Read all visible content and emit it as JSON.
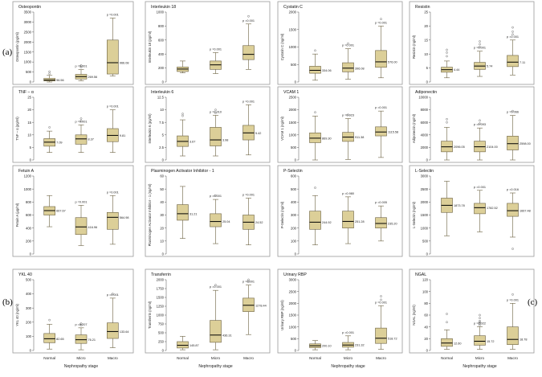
{
  "figure": {
    "row_labels": [
      "(a)",
      "(b)",
      "(c)"
    ],
    "categories": [
      "Normal",
      "Micro",
      "Macro"
    ],
    "xlabel": "Nephropathy stage",
    "colors": {
      "box_fill": "#dccf98",
      "box_stroke": "#6b6040",
      "frame": "#9a9a9a",
      "median": "#000000",
      "outlier": "#707070"
    }
  },
  "chart_data": [
    {
      "type": "box",
      "title": "Osteopontin",
      "ylabel": "Osteopontin (pg/ml)",
      "ylim": [
        0,
        3500
      ],
      "yticks": [
        0,
        500,
        1000,
        1500,
        2000,
        2500,
        3000,
        3500
      ],
      "categories": [
        "Normal",
        "Micro",
        "Macro"
      ],
      "pvalues": [
        "",
        "p =0.001",
        "p =0.001"
      ],
      "median_labels": [
        "96.56",
        "269.56",
        "966.08"
      ],
      "boxes": [
        {
          "min": 0,
          "q1": 50,
          "med": 97,
          "q3": 180,
          "max": 330,
          "outliers": [
            420,
            520
          ]
        },
        {
          "min": 60,
          "q1": 150,
          "med": 270,
          "q3": 380,
          "max": 620,
          "outliers": [
            750,
            830
          ]
        },
        {
          "min": 300,
          "q1": 400,
          "med": 966,
          "q3": 2100,
          "max": 3200,
          "outliers": []
        }
      ]
    },
    {
      "type": "box",
      "title": "Interleukin 18",
      "ylabel": "Interleukin 18 (pg/ml)",
      "ylim": [
        0,
        1000
      ],
      "yticks": [
        0,
        200,
        400,
        600,
        800,
        1000
      ],
      "categories": [
        "Normal",
        "Micro",
        "Macro"
      ],
      "pvalues": [
        "",
        "p =0.001",
        "p =0.001"
      ],
      "median_labels": [
        "",
        "",
        ""
      ],
      "boxes": [
        {
          "min": 130,
          "q1": 150,
          "med": 185,
          "q3": 215,
          "max": 300,
          "outliers": []
        },
        {
          "min": 120,
          "q1": 180,
          "med": 245,
          "q3": 300,
          "max": 420,
          "outliers": []
        },
        {
          "min": 180,
          "q1": 320,
          "med": 395,
          "q3": 520,
          "max": 830,
          "outliers": [
            940
          ]
        }
      ]
    },
    {
      "type": "box",
      "title": "Cystatin C",
      "ylabel": "Cystatin C (ng/ml)",
      "ylim": [
        0,
        2000
      ],
      "yticks": [
        0,
        500,
        1000,
        1500,
        2000
      ],
      "categories": [
        "Normal",
        "Micro",
        "Macro"
      ],
      "pvalues": [
        "",
        "p =0.001",
        "p =0.001"
      ],
      "median_labels": [
        "334.06",
        "396.08",
        "576.00"
      ],
      "boxes": [
        {
          "min": 50,
          "q1": 250,
          "med": 334,
          "q3": 450,
          "max": 800,
          "outliers": [
            900
          ]
        },
        {
          "min": 80,
          "q1": 290,
          "med": 396,
          "q3": 550,
          "max": 950,
          "outliers": [
            1100
          ]
        },
        {
          "min": 120,
          "q1": 420,
          "med": 576,
          "q3": 900,
          "max": 1600,
          "outliers": [
            1800
          ]
        }
      ]
    },
    {
      "type": "box",
      "title": "Resistin",
      "ylabel": "Resistin (ng/ml)",
      "ylim": [
        0,
        25
      ],
      "yticks": [
        0,
        5,
        10,
        15,
        20,
        25
      ],
      "categories": [
        "Normal",
        "Micro",
        "Macro"
      ],
      "pvalues": [
        "",
        "p =0.001",
        "p =0.001"
      ],
      "median_labels": [
        "4.44",
        "5.74",
        "7.11"
      ],
      "boxes": [
        {
          "min": 1.5,
          "q1": 3.5,
          "med": 4.4,
          "q3": 5.3,
          "max": 7.5,
          "outliers": [
            9.2,
            10.5,
            11.5
          ]
        },
        {
          "min": 2,
          "q1": 4.5,
          "med": 5.7,
          "q3": 7,
          "max": 11,
          "outliers": [
            12.5,
            13.5,
            14.5
          ]
        },
        {
          "min": 2.5,
          "q1": 5.5,
          "med": 7.1,
          "q3": 9.5,
          "max": 15,
          "outliers": [
            17,
            18,
            19.5
          ]
        }
      ]
    },
    {
      "type": "box",
      "title": "TNF – α",
      "ylabel": "TNF – α (pg/ml)",
      "ylim": [
        0,
        25
      ],
      "yticks": [
        0,
        5,
        10,
        15,
        20,
        25
      ],
      "categories": [
        "Normal",
        "Micro",
        "Macro"
      ],
      "pvalues": [
        "",
        "p =0.001",
        "p =0.001"
      ],
      "median_labels": [
        "7.09",
        "8.37",
        "9.81"
      ],
      "boxes": [
        {
          "min": 3,
          "q1": 5.5,
          "med": 7.1,
          "q3": 8.5,
          "max": 11.5,
          "outliers": [
            13
          ]
        },
        {
          "min": 3,
          "q1": 6.3,
          "med": 8.4,
          "q3": 10,
          "max": 14,
          "outliers": [
            15.5,
            16.5
          ]
        },
        {
          "min": 3,
          "q1": 7.3,
          "med": 9.8,
          "q3": 12.5,
          "max": 20,
          "outliers": []
        }
      ]
    },
    {
      "type": "box",
      "title": "Interleukin 6",
      "ylabel": "Interleukin 6 (pg/ml)",
      "ylim": [
        0,
        12.5
      ],
      "yticks": [
        0,
        2.5,
        5,
        7.5,
        10,
        12.5
      ],
      "categories": [
        "Normal",
        "Micro",
        "Macro"
      ],
      "pvalues": [
        "",
        "p =0.010",
        "p =0.001"
      ],
      "median_labels": [
        "3.67",
        "3.98",
        "5.42"
      ],
      "boxes": [
        {
          "min": 0.8,
          "q1": 2.7,
          "med": 3.7,
          "q3": 4.8,
          "max": 8,
          "outliers": [
            8.8,
            9.2
          ]
        },
        {
          "min": 0.8,
          "q1": 2.8,
          "med": 4.0,
          "q3": 6.5,
          "max": 8.9,
          "outliers": [
            9.4,
            10
          ]
        },
        {
          "min": 1,
          "q1": 4,
          "med": 5.4,
          "q3": 6.9,
          "max": 11,
          "outliers": []
        }
      ]
    },
    {
      "type": "box",
      "title": "VCAM 1",
      "ylabel": "VCAM 1 (ng/ml)",
      "ylim": [
        0,
        2500
      ],
      "yticks": [
        0,
        500,
        1000,
        1500,
        2000,
        2500
      ],
      "categories": [
        "Normal",
        "Micro",
        "Macro"
      ],
      "pvalues": [
        "",
        "p =0.923",
        "p =0.001"
      ],
      "median_labels": [
        "869.30",
        "911.38",
        "1115.58"
      ],
      "boxes": [
        {
          "min": 0,
          "q1": 690,
          "med": 869,
          "q3": 1080,
          "max": 1750,
          "outliers": [
            1900
          ]
        },
        {
          "min": 20,
          "q1": 740,
          "med": 911,
          "q3": 1100,
          "max": 1650,
          "outliers": [
            1800
          ]
        },
        {
          "min": 100,
          "q1": 960,
          "med": 1115,
          "q3": 1320,
          "max": 1950,
          "outliers": []
        }
      ]
    },
    {
      "type": "box",
      "title": "Adiponectin",
      "ylabel": "Adiponectin (ng/ml)",
      "ylim": [
        0,
        10000
      ],
      "yticks": [
        0,
        2000,
        4000,
        6000,
        8000,
        10000
      ],
      "categories": [
        "Normal",
        "Micro",
        "Macro"
      ],
      "pvalues": [
        "",
        "p =0.093",
        "p =0.066"
      ],
      "median_labels": [
        "2096.05",
        "2104.00",
        "2598.00"
      ],
      "boxes": [
        {
          "min": 0,
          "q1": 1300,
          "med": 2096,
          "q3": 3000,
          "max": 5200,
          "outliers": [
            6000,
            6500
          ]
        },
        {
          "min": 0,
          "q1": 1300,
          "med": 2104,
          "q3": 3000,
          "max": 5100,
          "outliers": [
            5800,
            6300
          ]
        },
        {
          "min": 0,
          "q1": 1600,
          "med": 2598,
          "q3": 3800,
          "max": 7100,
          "outliers": [
            7800
          ]
        }
      ]
    },
    {
      "type": "box",
      "title": "Fetuin A",
      "ylabel": "Fetuin A (µg/ml)",
      "ylim": [
        0,
        1200
      ],
      "yticks": [
        0,
        200,
        400,
        600,
        800,
        1000,
        1200
      ],
      "categories": [
        "Normal",
        "Micro",
        "Macro"
      ],
      "pvalues": [
        "",
        "p =0.001",
        "p =0.001"
      ],
      "median_labels": [
        "667.67",
        "416.96",
        "564.98"
      ],
      "boxes": [
        {
          "min": 420,
          "q1": 600,
          "med": 668,
          "q3": 730,
          "max": 900,
          "outliers": []
        },
        {
          "min": 130,
          "q1": 300,
          "med": 417,
          "q3": 560,
          "max": 750,
          "outliers": []
        },
        {
          "min": 150,
          "q1": 380,
          "med": 565,
          "q3": 640,
          "max": 900,
          "outliers": []
        }
      ]
    },
    {
      "type": "box",
      "title": "Plasminogen Activator Inhibitor - 1",
      "ylabel": "Plasminogen Activator Inhibitor - 1 (ng/ml)",
      "ylim": [
        0,
        60
      ],
      "yticks": [
        0,
        10,
        20,
        30,
        40,
        50,
        60
      ],
      "categories": [
        "Normal",
        "Micro",
        "Macro"
      ],
      "pvalues": [
        "",
        "p =0.001",
        "p =0.001"
      ],
      "median_labels": [
        "31.21",
        "25.04",
        "24.52"
      ],
      "boxes": [
        {
          "min": 12,
          "q1": 26,
          "med": 31,
          "q3": 38,
          "max": 52,
          "outliers": []
        },
        {
          "min": 8,
          "q1": 21,
          "med": 25,
          "q3": 31,
          "max": 42,
          "outliers": [
            45
          ]
        },
        {
          "min": 7,
          "q1": 19,
          "med": 24.5,
          "q3": 30,
          "max": 43,
          "outliers": []
        }
      ]
    },
    {
      "type": "box",
      "title": "P-Selectin",
      "ylabel": "P-Selectin (ng/ml)",
      "ylim": [
        0,
        600
      ],
      "yticks": [
        0,
        100,
        200,
        300,
        400,
        500,
        600
      ],
      "categories": [
        "Normal",
        "Micro",
        "Macro"
      ],
      "pvalues": [
        "",
        "p =0.980",
        "p =0.005"
      ],
      "median_labels": [
        "244.92",
        "251.28",
        "235.20"
      ],
      "boxes": [
        {
          "min": 70,
          "q1": 190,
          "med": 245,
          "q3": 330,
          "max": 450,
          "outliers": [
            510
          ]
        },
        {
          "min": 80,
          "q1": 200,
          "med": 251,
          "q3": 330,
          "max": 440,
          "outliers": []
        },
        {
          "min": 100,
          "q1": 200,
          "med": 235,
          "q3": 280,
          "max": 370,
          "outliers": []
        }
      ]
    },
    {
      "type": "box",
      "title": "L-Selectin",
      "ylabel": "L-Selectin (ng/ml)",
      "ylim": [
        0,
        3000
      ],
      "yticks": [
        0,
        500,
        1000,
        1500,
        2000,
        2500,
        3000
      ],
      "categories": [
        "Normal",
        "Micro",
        "Macro"
      ],
      "pvalues": [
        "",
        "p =0.001",
        "p =0.016"
      ],
      "median_labels": [
        "1873.78",
        "1782.52",
        "1667.48"
      ],
      "boxes": [
        {
          "min": 700,
          "q1": 1600,
          "med": 1874,
          "q3": 2150,
          "max": 2800,
          "outliers": []
        },
        {
          "min": 850,
          "q1": 1550,
          "med": 1783,
          "q3": 1950,
          "max": 2450,
          "outliers": []
        },
        {
          "min": 650,
          "q1": 1450,
          "med": 1667,
          "q3": 1950,
          "max": 2350,
          "outliers": [
            200
          ]
        }
      ]
    },
    {
      "type": "box",
      "title": "YKL 40",
      "ylabel": "YKL 40 (ng/ml)",
      "ylim": [
        0,
        500
      ],
      "yticks": [
        0,
        100,
        200,
        300,
        400,
        500
      ],
      "categories": [
        "Normal",
        "Micro",
        "Macro"
      ],
      "pvalues": [
        "",
        "p =0.207",
        "p =0.001"
      ],
      "median_labels": [
        "82.65",
        "76.21",
        "133.64"
      ],
      "boxes": [
        {
          "min": 10,
          "q1": 55,
          "med": 83,
          "q3": 120,
          "max": 185,
          "outliers": [
            215
          ]
        },
        {
          "min": 5,
          "q1": 50,
          "med": 76,
          "q3": 110,
          "max": 160,
          "outliers": [
            180,
            190
          ]
        },
        {
          "min": 20,
          "q1": 85,
          "med": 134,
          "q3": 195,
          "max": 370,
          "outliers": [
            400
          ]
        }
      ]
    },
    {
      "type": "box",
      "title": "Transferrin",
      "ylabel": "Transferrin (ng/ml)",
      "ylim": [
        0,
        2000
      ],
      "yticks": [
        0,
        250,
        500,
        750,
        1000,
        1250,
        1500,
        1750,
        2000
      ],
      "categories": [
        "Normal",
        "Micro",
        "Macro"
      ],
      "pvalues": [
        "",
        "p =0.001",
        "p =0.001"
      ],
      "median_labels": [
        "145.87",
        "436.31",
        "1278.44"
      ],
      "boxes": [
        {
          "min": 20,
          "q1": 70,
          "med": 146,
          "q3": 250,
          "max": 400,
          "outliers": []
        },
        {
          "min": 20,
          "q1": 230,
          "med": 436,
          "q3": 850,
          "max": 1700,
          "outliers": [
            1850
          ]
        },
        {
          "min": 450,
          "q1": 1100,
          "med": 1278,
          "q3": 1480,
          "max": 1850,
          "outliers": [
            1950,
            2000
          ]
        }
      ]
    },
    {
      "type": "box",
      "title": "Urinary RBP",
      "ylabel": "Urinary RBP (ng/ml)",
      "ylim": [
        0,
        3000
      ],
      "yticks": [
        0,
        500,
        1000,
        1500,
        2000,
        2500,
        3000
      ],
      "categories": [
        "Normal",
        "Micro",
        "Macro"
      ],
      "pvalues": [
        "",
        "p =0.001",
        "p =0.001"
      ],
      "median_labels": [
        "200.10",
        "231.32",
        "518.72"
      ],
      "boxes": [
        {
          "min": 30,
          "q1": 120,
          "med": 200,
          "q3": 280,
          "max": 420,
          "outliers": []
        },
        {
          "min": 30,
          "q1": 140,
          "med": 231,
          "q3": 340,
          "max": 620,
          "outliers": []
        },
        {
          "min": 50,
          "q1": 300,
          "med": 519,
          "q3": 950,
          "max": 1900,
          "outliers": [
            2150,
            2300
          ]
        }
      ]
    },
    {
      "type": "box",
      "title": "NGAL",
      "ylabel": "NGAL (ng/ml)",
      "ylim": [
        0,
        120
      ],
      "yticks": [
        0,
        20,
        40,
        60,
        80,
        100,
        120
      ],
      "categories": [
        "Normal",
        "Micro",
        "Macro"
      ],
      "pvalues": [
        "",
        "p =0.022",
        "p =0.001"
      ],
      "median_labels": [
        "12.60",
        "15.72",
        "18.78"
      ],
      "boxes": [
        {
          "min": 2,
          "q1": 7,
          "med": 12.6,
          "q3": 20,
          "max": 35,
          "outliers": [
            48,
            62
          ]
        },
        {
          "min": 2,
          "q1": 9,
          "med": 15.7,
          "q3": 25,
          "max": 40,
          "outliers": [
            43,
            46,
            48,
            50,
            55,
            60
          ]
        },
        {
          "min": 2,
          "q1": 10,
          "med": 18.8,
          "q3": 40,
          "max": 80,
          "outliers": [
            95
          ]
        }
      ]
    }
  ]
}
